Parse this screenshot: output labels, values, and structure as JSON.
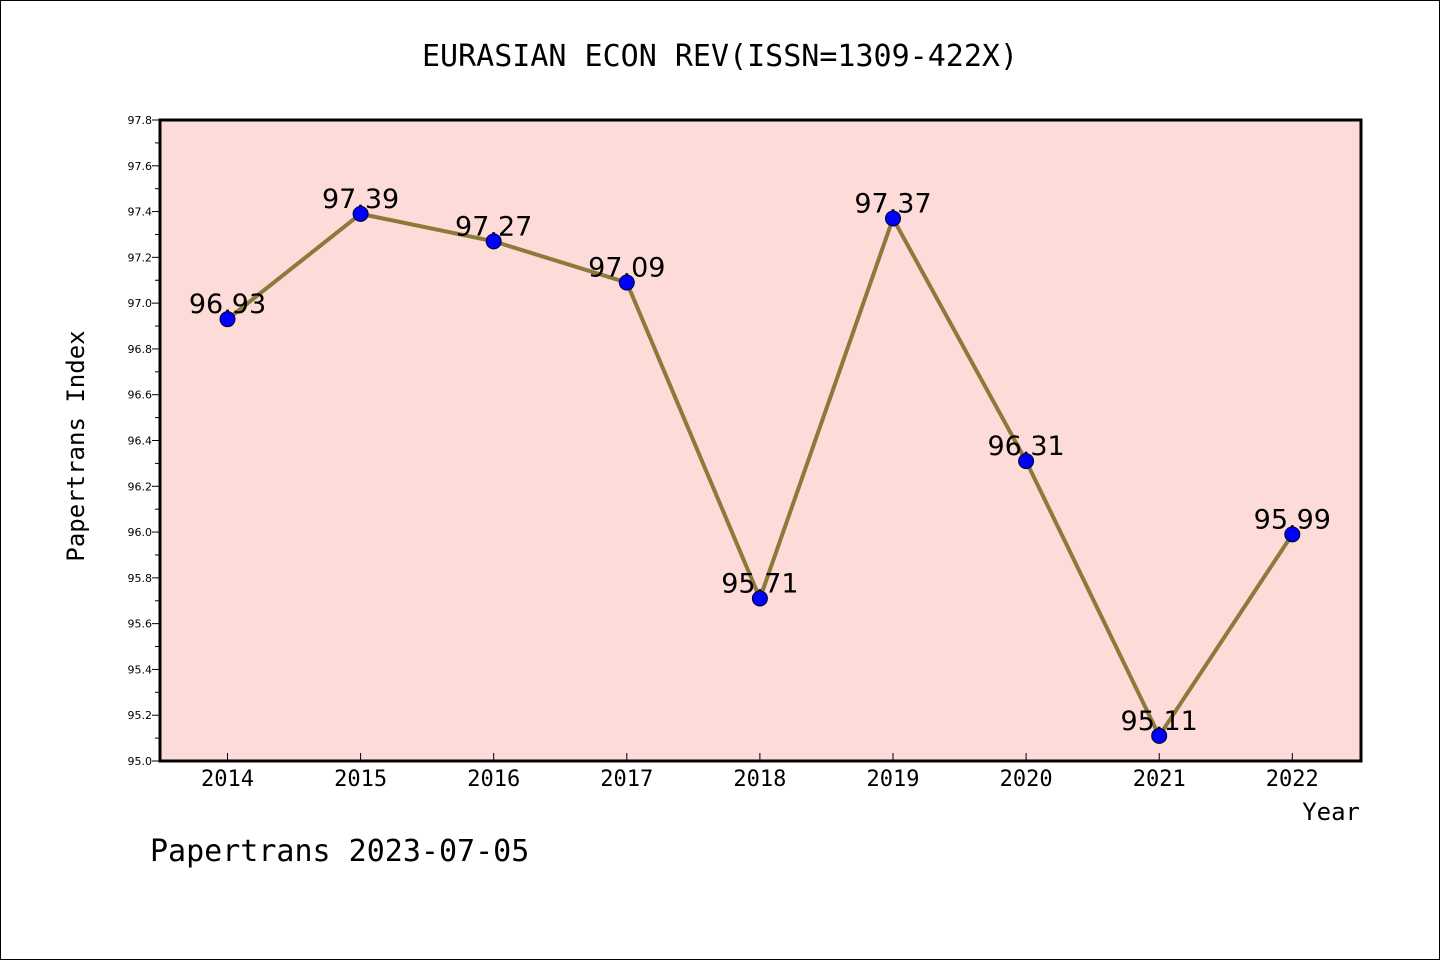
{
  "chart_data": {
    "type": "line",
    "title": "EURASIAN ECON REV(ISSN=1309-422X)",
    "xlabel": "Year",
    "ylabel": "Papertrans Index",
    "categories": [
      "2014",
      "2015",
      "2016",
      "2017",
      "2018",
      "2019",
      "2020",
      "2021",
      "2022"
    ],
    "series": [
      {
        "values": [
          96.93,
          97.39,
          97.27,
          97.09,
          95.71,
          97.37,
          96.31,
          95.11,
          95.99
        ],
        "labels": [
          "96.93",
          "97.39",
          "97.27",
          "97.09",
          "95.71",
          "97.37",
          "96.31",
          "95.11",
          "95.99"
        ]
      }
    ],
    "ylim": [
      95.0,
      97.8
    ],
    "yticks": [
      "95.0",
      "95.2",
      "95.4",
      "95.6",
      "95.8",
      "96.0",
      "96.2",
      "96.4",
      "96.6",
      "96.8",
      "97.0",
      "97.2",
      "97.4",
      "97.6",
      "97.8"
    ],
    "grid": false,
    "legend": "none",
    "colors": {
      "plot_background": "#fddbd9",
      "line": "#8b7a3a",
      "marker": "#0000ff"
    }
  },
  "footer": "Papertrans 2023-07-05"
}
